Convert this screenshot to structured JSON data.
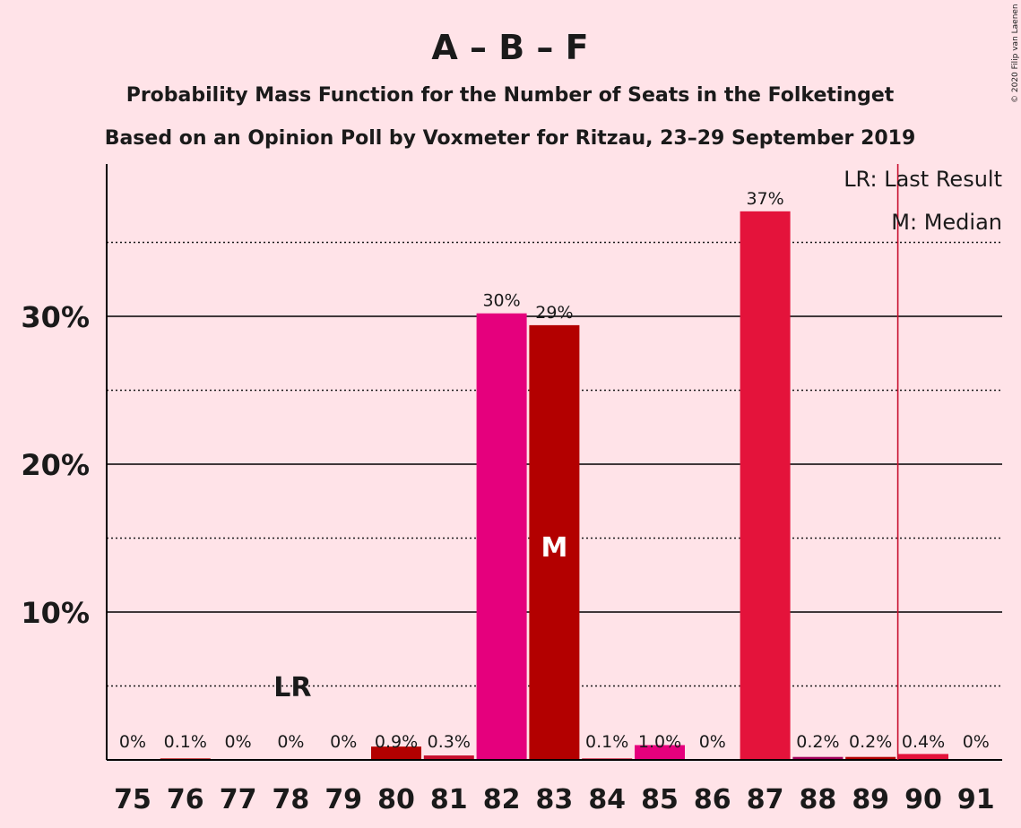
{
  "chart_data": {
    "type": "bar",
    "title": "A – B – F",
    "subtitle1": "Probability Mass Function for the Number of Seats in the Folketinget",
    "subtitle2": "Based on an Opinion Poll by Voxmeter for Ritzau, 23–29 September 2019",
    "copyright": "© 2020 Filip van Laenen",
    "categories": [
      "75",
      "76",
      "77",
      "78",
      "79",
      "80",
      "81",
      "82",
      "83",
      "84",
      "85",
      "86",
      "87",
      "88",
      "89",
      "90",
      "91"
    ],
    "values": [
      0,
      0.1,
      0,
      0,
      0,
      0.9,
      0.3,
      30.2,
      29.4,
      0.1,
      1.0,
      0,
      37.1,
      0.2,
      0.2,
      0.4,
      0
    ],
    "data_labels": [
      "0%",
      "0.1%",
      "0%",
      "0%",
      "0%",
      "0.9%",
      "0.3%",
      "30%",
      "29%",
      "0.1%",
      "1.0%",
      "0%",
      "37%",
      "0.2%",
      "0.2%",
      "0.4%",
      "0%"
    ],
    "bar_colors": [
      "#E5007D",
      "#B30000",
      "#E5007D",
      "#B30000",
      "#E5007D",
      "#B30000",
      "#C8102E",
      "#E5007D",
      "#B30000",
      "#C8102E",
      "#E5007D",
      "#B30000",
      "#E4133B",
      "#A0005A",
      "#B30000",
      "#E4133B",
      "#B30000"
    ],
    "ylim": [
      0,
      40
    ],
    "yticks": [
      {
        "value": 10,
        "label": "10%"
      },
      {
        "value": 20,
        "label": "20%"
      },
      {
        "value": 30,
        "label": "30%"
      }
    ],
    "minor_gridlines": [
      5,
      15,
      25,
      35
    ],
    "last_result_label": "LR",
    "last_result_seat": "78",
    "median_label": "M",
    "median_seat": "83",
    "majority_line_after_seat": "89",
    "legend": [
      "LR: Last Result",
      "M: Median"
    ],
    "legend_position": "top-right",
    "majority_line_color": "#C8102E",
    "background": "#FFE3E8"
  }
}
